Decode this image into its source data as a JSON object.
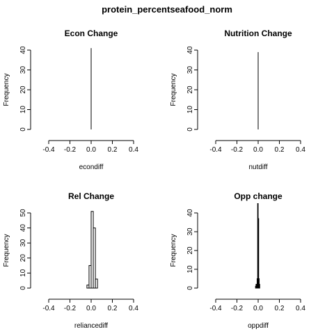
{
  "figure_title": "protein_percentseafood_norm",
  "chart_data": [
    {
      "type": "bar",
      "title": "Econ Change",
      "xlabel": "econdiff",
      "ylabel": "Frequency",
      "xlim": [
        -0.5,
        0.5
      ],
      "ylim": [
        0,
        42
      ],
      "xticks": [
        -0.4,
        -0.2,
        0.0,
        0.2,
        0.4
      ],
      "xtick_labels": [
        "-0.4",
        "-0.2",
        "0.0",
        "0.2",
        "0.4"
      ],
      "yticks": [
        0,
        10,
        20,
        30,
        40
      ],
      "ytick_labels": [
        "0",
        "10",
        "20",
        "30",
        "40"
      ],
      "bins": [
        {
          "x0": 0.0,
          "x1": 0.0,
          "count": 41
        }
      ]
    },
    {
      "type": "bar",
      "title": "Nutrition Change",
      "xlabel": "nutdiff",
      "ylabel": "Frequency",
      "xlim": [
        -0.5,
        0.5
      ],
      "ylim": [
        0,
        42
      ],
      "xticks": [
        -0.4,
        -0.2,
        0.0,
        0.2,
        0.4
      ],
      "xtick_labels": [
        "-0.4",
        "-0.2",
        "0.0",
        "0.2",
        "0.4"
      ],
      "yticks": [
        0,
        10,
        20,
        30,
        40
      ],
      "ytick_labels": [
        "0",
        "10",
        "20",
        "30",
        "40"
      ],
      "bins": [
        {
          "x0": 0.0,
          "x1": 0.0,
          "count": 39
        }
      ]
    },
    {
      "type": "bar",
      "title": "Rel Change",
      "xlabel": "reliancediff",
      "ylabel": "Frequency",
      "xlim": [
        -0.5,
        0.5
      ],
      "ylim": [
        0,
        53
      ],
      "xticks": [
        -0.4,
        -0.2,
        0.0,
        0.2,
        0.4
      ],
      "xtick_labels": [
        "-0.4",
        "-0.2",
        "0.0",
        "0.2",
        "0.4"
      ],
      "yticks": [
        0,
        10,
        20,
        30,
        40,
        50
      ],
      "ytick_labels": [
        "0",
        "10",
        "20",
        "30",
        "40",
        "50"
      ],
      "bins": [
        {
          "x0": -0.04,
          "x1": -0.02,
          "count": 2
        },
        {
          "x0": -0.02,
          "x1": 0.0,
          "count": 15
        },
        {
          "x0": 0.0,
          "x1": 0.02,
          "count": 51
        },
        {
          "x0": 0.02,
          "x1": 0.04,
          "count": 40
        },
        {
          "x0": 0.04,
          "x1": 0.06,
          "count": 6
        }
      ]
    },
    {
      "type": "bar",
      "title": "Opp change",
      "xlabel": "oppdiff",
      "ylabel": "Frequency",
      "xlim": [
        -0.5,
        0.5
      ],
      "ylim": [
        0,
        47
      ],
      "xticks": [
        -0.4,
        -0.2,
        0.0,
        0.2,
        0.4
      ],
      "xtick_labels": [
        "-0.4",
        "-0.2",
        "0.0",
        "0.2",
        "0.4"
      ],
      "yticks": [
        0,
        10,
        20,
        30,
        40
      ],
      "ytick_labels": [
        "0",
        "10",
        "20",
        "30",
        "40"
      ],
      "bins": [
        {
          "x0": -0.025,
          "x1": -0.02,
          "count": 1
        },
        {
          "x0": -0.02,
          "x1": -0.015,
          "count": 2
        },
        {
          "x0": -0.015,
          "x1": -0.01,
          "count": 2
        },
        {
          "x0": -0.01,
          "x1": -0.005,
          "count": 5
        },
        {
          "x0": -0.005,
          "x1": 0.0,
          "count": 45
        },
        {
          "x0": 0.0,
          "x1": 0.005,
          "count": 37
        },
        {
          "x0": 0.005,
          "x1": 0.01,
          "count": 5
        },
        {
          "x0": 0.01,
          "x1": 0.015,
          "count": 2
        }
      ]
    }
  ]
}
